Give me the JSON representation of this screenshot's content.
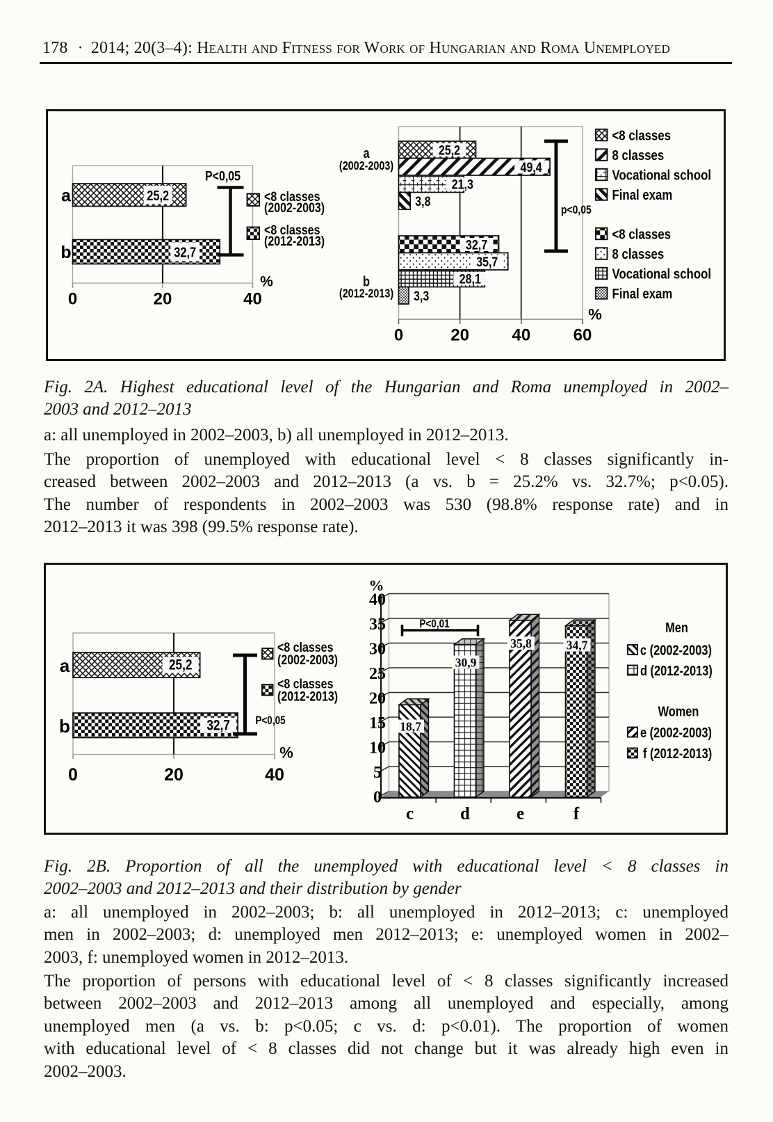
{
  "page": {
    "background": "#fcfcf6",
    "ink": "#121212"
  },
  "header": {
    "page_number": "178",
    "separator": "·",
    "title": "2014; 20(3–4): Health and Fitness for Work of Hungarian and Roma Unemployed"
  },
  "figure_2a": {
    "caption_lines": [
      "Fig. 2A. Highest educational level of the Hungarian and Roma unemployed in 2002–",
      "2003 and 2012–2013"
    ],
    "note_lines": [
      "a: all unemployed in 2002–2003, b) all unemployed in 2012–2013."
    ],
    "body_lines": [
      "The proportion of unemployed with educational level < 8 classes significantly in-",
      "creased between 2002–2003 and 2012–2013 (a vs. b = 25.2% vs. 32.7%; p<0.05).",
      "The number of respondents in 2002–2003 was 530 (98.8% response rate) and in",
      "2012–2013 it was 398 (99.5% response rate)."
    ]
  },
  "figure_2b": {
    "caption_lines": [
      "Fig. 2B. Proportion of all the unemployed with educational level < 8 classes in",
      "2002–2003 and 2012–2013 and their distribution by gender"
    ],
    "note_lines": [
      "a: all unemployed in 2002–2003; b: all unemployed in 2012–2013; c: unemployed",
      "men in 2002–2003; d: unemployed men 2012–2013; e: unemployed women in 2002–",
      "2003, f: unemployed women in 2012–2013."
    ],
    "body_lines": [
      "The proportion of persons with educational level of < 8 classes significantly increased",
      "between 2002–2003 and 2012–2013 among all unemployed and especially, among",
      "unemployed men (a vs. b: p<0.05; c vs. d: p<0.01). The proportion of women",
      "with educational level of < 8 classes did not change but it was already high even in",
      "2002–2003."
    ]
  },
  "chart_data": [
    {
      "id": "fig2a_left",
      "type": "bar",
      "orientation": "horizontal",
      "categories": [
        "a",
        "b"
      ],
      "values": [
        25.2,
        32.7
      ],
      "value_labels": [
        "25,2",
        "32,7"
      ],
      "patterns": [
        "diag-crosshatch",
        "checkerboard"
      ],
      "xlim": [
        0,
        40
      ],
      "xticks": [
        "0",
        "20",
        "40"
      ],
      "xlabel": "%",
      "grid_at": [
        20
      ],
      "significance": "P<0,05",
      "legend": [
        {
          "lines": [
            "<8 classes",
            "(2002-2003)"
          ],
          "pattern": "diag-crosshatch"
        },
        {
          "lines": [
            "<8 classes",
            "(2012-2013)"
          ],
          "pattern": "checkerboard"
        }
      ]
    },
    {
      "id": "fig2a_right",
      "type": "bar",
      "orientation": "horizontal",
      "xlim": [
        0,
        60
      ],
      "xticks": [
        "0",
        "20",
        "40",
        "60"
      ],
      "xlabel": "%",
      "grid_at": [
        20,
        40
      ],
      "significance": "p<0,05",
      "groups": [
        {
          "label_lines": [
            "a",
            "(2002-2003)"
          ],
          "bars": [
            {
              "name": "<8 classes",
              "value": 25.2,
              "label": "25,2",
              "pattern": "diag-crosshatch"
            },
            {
              "name": "8 classes",
              "value": 49.4,
              "label": "49,4",
              "pattern": "slash-wide"
            },
            {
              "name": "Vocational school",
              "value": 21.3,
              "label": "21,3",
              "pattern": "grid-light"
            },
            {
              "name": "Final exam",
              "value": 3.8,
              "label": "3,8",
              "pattern": "backslash-bold"
            }
          ]
        },
        {
          "label_lines": [
            "b",
            "(2012-2013)"
          ],
          "bars": [
            {
              "name": "<8 classes",
              "value": 32.7,
              "label": "32,7",
              "pattern": "checker-coarse"
            },
            {
              "name": "8 classes",
              "value": 35.7,
              "label": "35,7",
              "pattern": "dots"
            },
            {
              "name": "Vocational school",
              "value": 28.1,
              "label": "28,1",
              "pattern": "grid-dense"
            },
            {
              "name": "Final exam",
              "value": 3.3,
              "label": "3,3",
              "pattern": "checker-fine"
            }
          ]
        }
      ],
      "legend_groups": [
        [
          {
            "text": "<8 classes",
            "pattern": "diag-crosshatch"
          },
          {
            "text": "8 classes",
            "pattern": "slash-wide"
          },
          {
            "text": "Vocational school",
            "pattern": "grid-light"
          },
          {
            "text": "Final exam",
            "pattern": "backslash-bold"
          }
        ],
        [
          {
            "text": "<8 classes",
            "pattern": "checker-coarse"
          },
          {
            "text": "8 classes",
            "pattern": "dots"
          },
          {
            "text": "Vocational school",
            "pattern": "grid-dense"
          },
          {
            "text": "Final exam",
            "pattern": "checker-fine"
          }
        ]
      ]
    },
    {
      "id": "fig2b_left",
      "type": "bar",
      "orientation": "horizontal",
      "categories": [
        "a",
        "b"
      ],
      "values": [
        25.2,
        32.7
      ],
      "value_labels": [
        "25,2",
        "32,7"
      ],
      "patterns": [
        "diag-crosshatch",
        "checkerboard"
      ],
      "xlim": [
        0,
        40
      ],
      "xticks": [
        "0",
        "20",
        "40"
      ],
      "xlabel": "%",
      "grid_at": [
        20
      ],
      "significance": "P<0,05",
      "legend": [
        {
          "lines": [
            "<8 classes",
            "(2002-2003)"
          ],
          "pattern": "diag-crosshatch"
        },
        {
          "lines": [
            "<8 classes",
            "(2012-2013)"
          ],
          "pattern": "checkerboard"
        }
      ]
    },
    {
      "id": "fig2b_right",
      "type": "bar3d",
      "categories": [
        "c",
        "d",
        "e",
        "f"
      ],
      "values": [
        18.7,
        30.9,
        35.8,
        34.7
      ],
      "value_labels": [
        "18,7",
        "30,9",
        "35,8",
        "34,7"
      ],
      "patterns": [
        "backslash-med",
        "grid-3d",
        "slash-thick",
        "checker-small"
      ],
      "ylim": [
        0,
        40
      ],
      "yticks": [
        "0",
        "5",
        "10",
        "15",
        "20",
        "25",
        "30",
        "35",
        "40"
      ],
      "ylabel": "%",
      "significance": "P<0,01",
      "legend": {
        "groups": [
          {
            "title": "Men",
            "items": [
              {
                "text": "c (2002-2003)",
                "pattern": "backslash-med"
              },
              {
                "text": "d (2012-2013)",
                "pattern": "grid-3d"
              }
            ]
          },
          {
            "title": "Women",
            "items": [
              {
                "text": "e (2002-2003)",
                "pattern": "slash-thick"
              },
              {
                "text": "f (2012-2013)",
                "pattern": "checker-small"
              }
            ]
          }
        ]
      }
    }
  ]
}
